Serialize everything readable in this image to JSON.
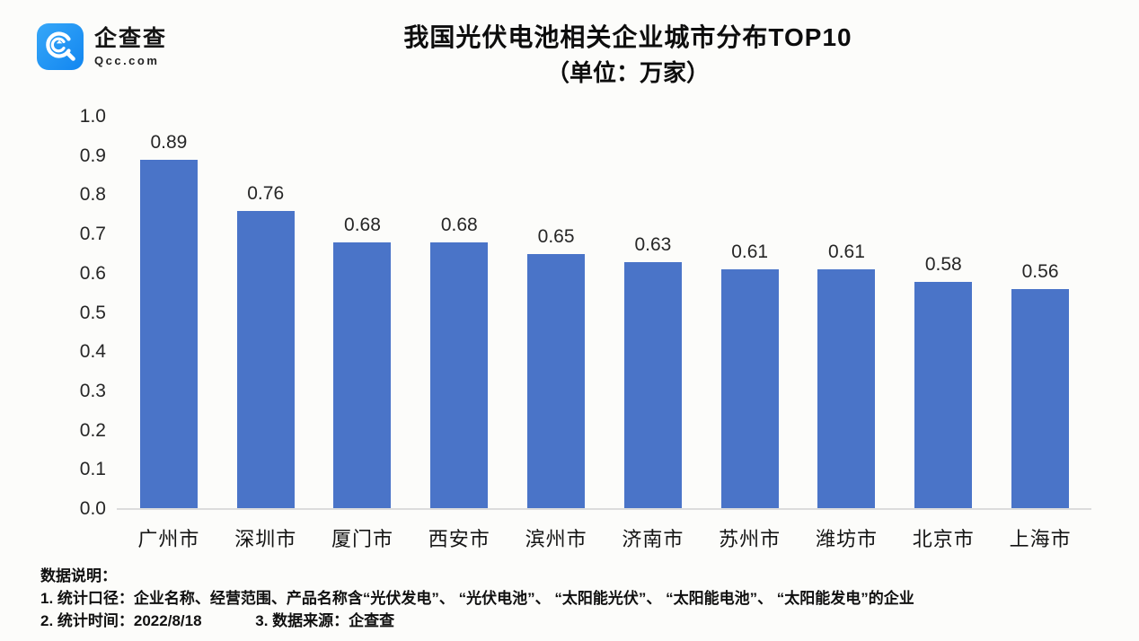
{
  "logo": {
    "name": "企查查",
    "domain": "Qcc.com"
  },
  "chart_data": {
    "type": "bar",
    "title": "我国光伏电池相关企业城市分布TOP10",
    "subtitle": "（单位：万家）",
    "categories": [
      "广州市",
      "深圳市",
      "厦门市",
      "西安市",
      "滨州市",
      "济南市",
      "苏州市",
      "潍坊市",
      "北京市",
      "上海市"
    ],
    "values": [
      0.89,
      0.76,
      0.68,
      0.68,
      0.65,
      0.63,
      0.61,
      0.61,
      0.58,
      0.56
    ],
    "value_labels": [
      "0.89",
      "0.76",
      "0.68",
      "0.68",
      "0.65",
      "0.63",
      "0.61",
      "0.61",
      "0.58",
      "0.56"
    ],
    "xlabel": "",
    "ylabel": "",
    "ylim": [
      0.0,
      1.0
    ],
    "y_ticks": [
      "1.0",
      "0.9",
      "0.8",
      "0.7",
      "0.6",
      "0.5",
      "0.4",
      "0.3",
      "0.2",
      "0.1",
      "0.0"
    ],
    "grid": false,
    "legend": false,
    "data_labels": true,
    "bar_color": "#4a74c8"
  },
  "footer": {
    "heading": "数据说明：",
    "line1": "1. 统计口径：企业名称、经营范围、产品名称含“光伏发电”、 “光伏电池”、 “太阳能光伏”、 “太阳能电池”、 “太阳能发电”的企业",
    "line2_left": "2. 统计时间：2022/8/18",
    "line2_right": "3. 数据来源：企查查"
  },
  "colors": {
    "bar": "#4a74c8",
    "logo_blue_light": "#36a7f8",
    "logo_blue_dark": "#1286f0",
    "baseline": "#dcdcdc",
    "background": "#fcfcfa"
  }
}
